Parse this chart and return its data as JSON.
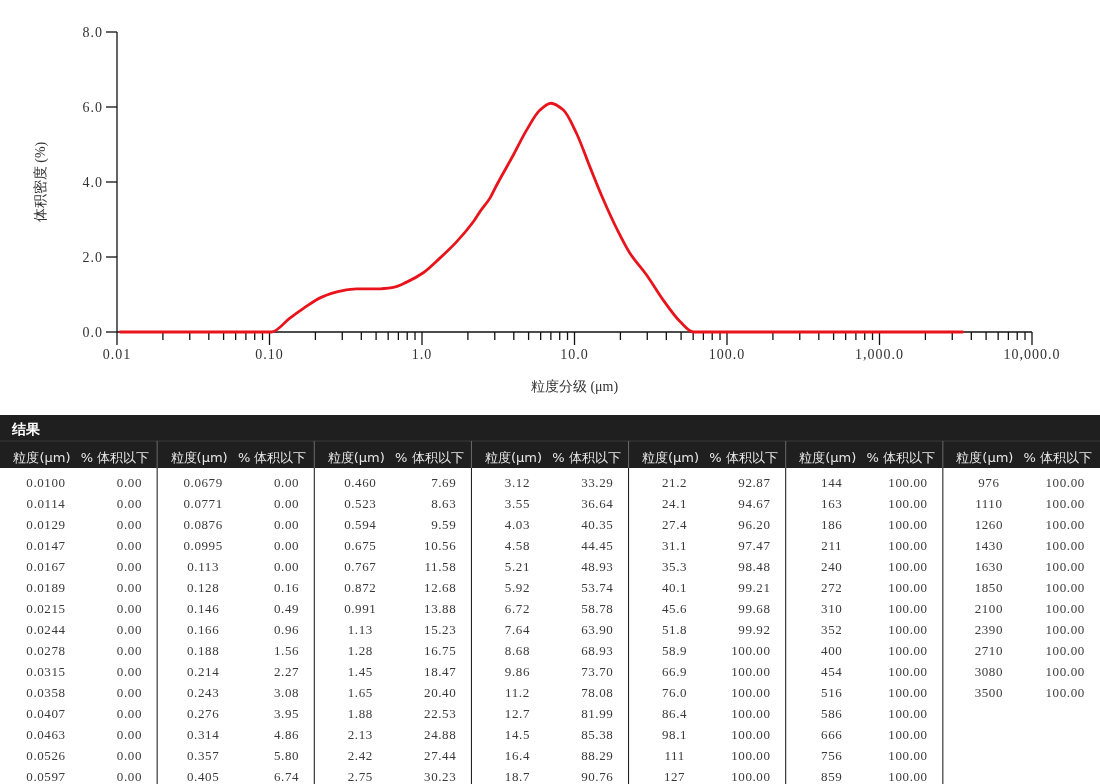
{
  "chart_data": [
    {
      "type": "line",
      "xlabel": "粒度分级 (μm)",
      "ylabel": "体积密度 (%)",
      "log": "x",
      "x": [
        0.0105,
        0.103,
        0.136,
        0.167,
        0.22,
        0.29,
        0.373,
        0.505,
        0.649,
        0.793,
        1.02,
        1.31,
        1.69,
        2.17,
        2.4,
        2.79,
        3.09,
        3.97,
        4.86,
        5.94,
        7.01,
        8.45,
        10.3,
        12.6,
        15.5,
        18.9,
        23.1,
        29.7,
        38.2,
        49.2,
        60.1,
        3500
      ],
      "series": [
        {
          "color": "#e8131b",
          "values": [
            0,
            0,
            0.37,
            0.63,
            0.93,
            1.09,
            1.15,
            1.15,
            1.19,
            1.33,
            1.58,
            1.97,
            2.41,
            2.94,
            3.21,
            3.57,
            3.92,
            4.72,
            5.39,
            5.92,
            6.1,
            5.92,
            5.3,
            4.41,
            3.52,
            2.76,
            2.1,
            1.52,
            0.85,
            0.28,
            0,
            0
          ]
        }
      ],
      "xlim": [
        0.01,
        10000
      ],
      "ylim": [
        0,
        8
      ],
      "xticks": [
        0.01,
        {
          "value": 0.02,
          "label": null
        },
        {
          "value": 0.03,
          "label": null
        },
        {
          "value": 0.04,
          "label": null
        },
        {
          "value": 0.05,
          "label": null
        },
        {
          "value": 0.06,
          "label": null
        },
        {
          "value": 0.07,
          "label": null
        },
        {
          "value": 0.08,
          "label": null
        },
        {
          "value": 0.09,
          "label": null
        },
        {
          "value": 0.1,
          "label": "0.10"
        },
        {
          "value": 0.2,
          "label": null
        },
        {
          "value": 0.3,
          "label": null
        },
        {
          "value": 0.4,
          "label": null
        },
        {
          "value": 0.5,
          "label": null
        },
        {
          "value": 0.6,
          "label": null
        },
        {
          "value": 0.7,
          "label": null
        },
        {
          "value": 0.8,
          "label": null
        },
        {
          "value": 0.9,
          "label": null
        },
        {
          "value": 1,
          "label": "1.0"
        },
        {
          "value": 2,
          "label": null
        },
        {
          "value": 3,
          "label": null
        },
        {
          "value": 4,
          "label": null
        },
        {
          "value": 5,
          "label": null
        },
        {
          "value": 6,
          "label": null
        },
        {
          "value": 7,
          "label": null
        },
        {
          "value": 8,
          "label": null
        },
        {
          "value": 9,
          "label": null
        },
        {
          "value": 10,
          "label": "10.0"
        },
        {
          "value": 20,
          "label": null
        },
        {
          "value": 30,
          "label": null
        },
        {
          "value": 40,
          "label": null
        },
        {
          "value": 50,
          "label": null
        },
        {
          "value": 60,
          "label": null
        },
        {
          "value": 70,
          "label": null
        },
        {
          "value": 80,
          "label": null
        },
        {
          "value": 90,
          "label": null
        },
        {
          "value": 100,
          "label": "100.0"
        },
        {
          "value": 200,
          "label": null
        },
        {
          "value": 300,
          "label": null
        },
        {
          "value": 400,
          "label": null
        },
        {
          "value": 500,
          "label": null
        },
        {
          "value": 600,
          "label": null
        },
        {
          "value": 700,
          "label": null
        },
        {
          "value": 800,
          "label": null
        },
        {
          "value": 900,
          "label": null
        },
        {
          "value": 1000,
          "label": "1,000.0"
        },
        {
          "value": 2000,
          "label": null
        },
        {
          "value": 3000,
          "label": null
        },
        {
          "value": 4000,
          "label": null
        },
        {
          "value": 5000,
          "label": null
        },
        {
          "value": 6000,
          "label": null
        },
        {
          "value": 7000,
          "label": null
        },
        {
          "value": 8000,
          "label": null
        },
        {
          "value": 9000,
          "label": null
        },
        {
          "value": 10000,
          "label": "10,000.0"
        }
      ],
      "yticks": [
        {
          "value": 0,
          "label": "0.0"
        },
        {
          "value": 2,
          "label": "2.0"
        },
        {
          "value": 4,
          "label": "4.0"
        },
        {
          "value": 6,
          "label": "6.0"
        },
        {
          "value": 8,
          "label": "8.0"
        }
      ]
    },
    {
      "type": "other",
      "title": "结果",
      "xlabel": "粒度(μm)",
      "ylabel": "% 体积以下",
      "categories": [
        "0.0100",
        "0.0114",
        "0.0129",
        "0.0147",
        "0.0167",
        "0.0189",
        "0.0215",
        "0.0244",
        "0.0278",
        "0.0315",
        "0.0358",
        "0.0407",
        "0.0463",
        "0.0526",
        "0.0597",
        "0.0679",
        "0.0771",
        "0.0876",
        "0.0995",
        "0.113",
        "0.128",
        "0.146",
        "0.166",
        "0.188",
        "0.214",
        "0.243",
        "0.276",
        "0.314",
        "0.357",
        "0.405",
        "0.460",
        "0.523",
        "0.594",
        "0.675",
        "0.767",
        "0.872",
        "0.991",
        "1.13",
        "1.28",
        "1.45",
        "1.65",
        "1.88",
        "2.13",
        "2.42",
        "2.75",
        "3.12",
        "3.55",
        "4.03",
        "4.58",
        "5.21",
        "5.92",
        "6.72",
        "7.64",
        "8.68",
        "9.86",
        "11.2",
        "12.7",
        "14.5",
        "16.4",
        "18.7",
        "21.2",
        "24.1",
        "27.4",
        "31.1",
        "35.3",
        "40.1",
        "45.6",
        "51.8",
        "58.9",
        "66.9",
        "76.0",
        "86.4",
        "98.1",
        "111",
        "127",
        "144",
        "163",
        "186",
        "211",
        "240",
        "272",
        "310",
        "352",
        "400",
        "454",
        "516",
        "586",
        "666",
        "756",
        "859",
        "976",
        "1110",
        "1260",
        "1430",
        "1630",
        "1850",
        "2100",
        "2390",
        "2710",
        "3080",
        "3500"
      ],
      "value_labels": [
        "0.00",
        "0.00",
        "0.00",
        "0.00",
        "0.00",
        "0.00",
        "0.00",
        "0.00",
        "0.00",
        "0.00",
        "0.00",
        "0.00",
        "0.00",
        "0.00",
        "0.00",
        "0.00",
        "0.00",
        "0.00",
        "0.00",
        "0.00",
        "0.16",
        "0.49",
        "0.96",
        "1.56",
        "2.27",
        "3.08",
        "3.95",
        "4.86",
        "5.80",
        "6.74",
        "7.69",
        "8.63",
        "9.59",
        "10.56",
        "11.58",
        "12.68",
        "13.88",
        "15.23",
        "16.75",
        "18.47",
        "20.40",
        "22.53",
        "24.88",
        "27.44",
        "30.23",
        "33.29",
        "36.64",
        "40.35",
        "44.45",
        "48.93",
        "53.74",
        "58.78",
        "63.90",
        "68.93",
        "73.70",
        "78.08",
        "81.99",
        "85.38",
        "88.29",
        "90.76",
        "92.87",
        "94.67",
        "96.20",
        "97.47",
        "98.48",
        "99.21",
        "99.68",
        "99.92",
        "100.00",
        "100.00",
        "100.00",
        "100.00",
        "100.00",
        "100.00",
        "100.00",
        "100.00",
        "100.00",
        "100.00",
        "100.00",
        "100.00",
        "100.00",
        "100.00",
        "100.00",
        "100.00",
        "100.00",
        "100.00",
        "100.00",
        "100.00",
        "100.00",
        "100.00",
        "100.00",
        "100.00",
        "100.00",
        "100.00",
        "100.00",
        "100.00",
        "100.00",
        "100.00",
        "100.00",
        "100.00",
        "100.00"
      ]
    }
  ]
}
